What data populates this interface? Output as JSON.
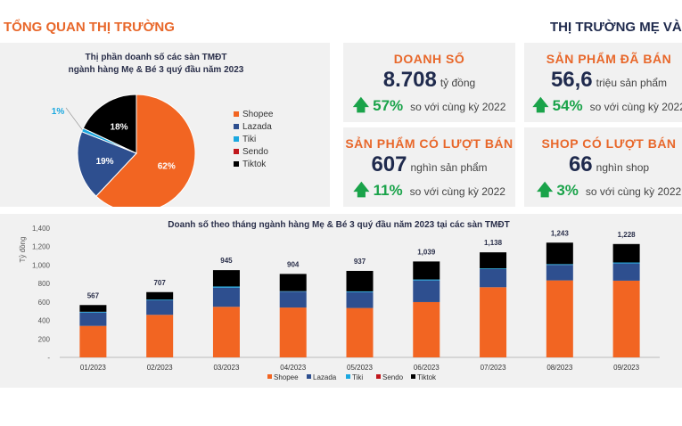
{
  "header": {
    "left_title": "TỔNG QUAN THỊ TRƯỜNG",
    "right_title": "THỊ TRƯỜNG MẸ VÀ BÉ"
  },
  "colors": {
    "Shopee": "#f26522",
    "Lazada": "#2e4f8f",
    "Tiki": "#1ba8e0",
    "Sendo": "#c0171c",
    "Tiktok": "#000000",
    "accent": "#e8672a",
    "up": "#1aa34a"
  },
  "cards": [
    {
      "title": "DOANH SỐ",
      "value": "8.708",
      "unit": "tỷ đồng",
      "icon": "arrow-up-icon",
      "growth": "57%",
      "compare": "so với cùng kỳ 2022"
    },
    {
      "title": "SẢN PHẨM ĐÃ BÁN",
      "value": "56,6",
      "unit": "triệu sản phẩm",
      "icon": "arrow-up-icon",
      "growth": "54%",
      "compare": "so với cùng kỳ 2022"
    },
    {
      "title": "SẢN PHẨM CÓ LƯỢT BÁN",
      "value": "607",
      "unit": "nghìn sản phẩm",
      "icon": "arrow-up-icon",
      "growth": "11%",
      "compare": "so với cùng kỳ 2022"
    },
    {
      "title": "SHOP CÓ LƯỢT BÁN",
      "value": "66",
      "unit": "nghìn shop",
      "icon": "arrow-up-icon",
      "growth": "3%",
      "compare": "so với cùng kỳ 2022"
    }
  ],
  "chart_data": [
    {
      "type": "pie",
      "title": "Thị phần doanh số các sàn TMĐT ngành hàng Mẹ & Bé 3 quý đầu năm 2023",
      "title_lines": [
        "Thị phần doanh số các sàn TMĐT",
        "ngành hàng Mẹ & Bé 3 quý đầu năm 2023"
      ],
      "legend_position": "right",
      "slices": [
        {
          "name": "Shopee",
          "value": 62,
          "label": "62%"
        },
        {
          "name": "Lazada",
          "value": 19,
          "label": "19%"
        },
        {
          "name": "Tiki",
          "value": 1,
          "label": "1%"
        },
        {
          "name": "Sendo",
          "value": 0,
          "label": ""
        },
        {
          "name": "Tiktok",
          "value": 18,
          "label": "18%"
        }
      ]
    },
    {
      "type": "bar",
      "stacked": true,
      "title": "Doanh số theo tháng ngành hàng Mẹ & Bé 3 quý đầu năm 2023 tại các sàn TMĐT",
      "ylabel": "Tỷ đồng",
      "xlabel": "",
      "ylim": [
        0,
        1400
      ],
      "yticks": [
        "-",
        "200",
        "400",
        "600",
        "800",
        "1,000",
        "1,200",
        "1,400"
      ],
      "legend_position": "bottom",
      "grid": false,
      "categories": [
        "01/2023",
        "02/2023",
        "03/2023",
        "04/2023",
        "05/2023",
        "06/2023",
        "07/2023",
        "08/2023",
        "09/2023"
      ],
      "totals": [
        "567",
        "707",
        "945",
        "904",
        "937",
        "1,039",
        "1,138",
        "1,243",
        "1,228"
      ],
      "series": [
        {
          "name": "Shopee",
          "values": [
            341,
            461,
            548,
            540,
            535,
            599,
            760,
            834,
            831
          ]
        },
        {
          "name": "Lazada",
          "values": [
            145,
            157,
            208,
            172,
            172,
            235,
            196,
            168,
            187
          ]
        },
        {
          "name": "Tiki",
          "values": [
            8,
            8,
            12,
            5,
            8,
            10,
            8,
            8,
            10
          ]
        },
        {
          "name": "Sendo",
          "values": [
            0,
            0,
            0,
            0,
            0,
            0,
            0,
            0,
            0
          ]
        },
        {
          "name": "Tiktok",
          "values": [
            73,
            81,
            177,
            187,
            222,
            195,
            174,
            233,
            200
          ]
        }
      ]
    }
  ]
}
